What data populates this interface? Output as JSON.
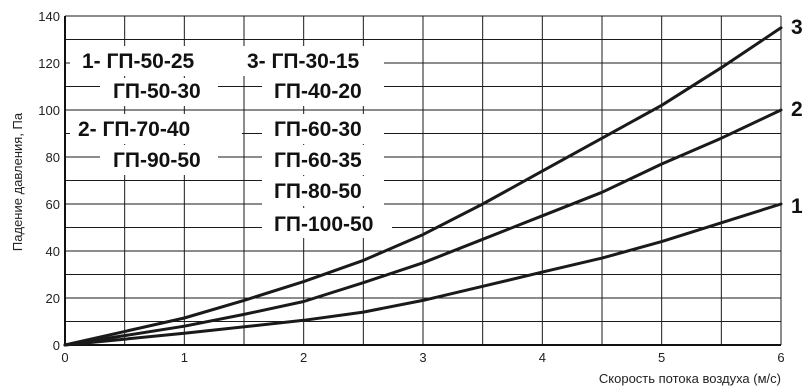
{
  "chart_data": {
    "type": "line",
    "xlabel": "Скорость потока воздуха (м/с)",
    "ylabel": "Падение давления, Па",
    "xlim": [
      0,
      6
    ],
    "ylim": [
      0,
      140
    ],
    "x_ticks": [
      "0",
      "1",
      "2",
      "3",
      "4",
      "5",
      "6"
    ],
    "y_ticks": [
      "0",
      "20",
      "40",
      "60",
      "80",
      "100",
      "120",
      "140"
    ],
    "grid": true,
    "series": [
      {
        "name": "1",
        "x": [
          0,
          1,
          2,
          2.5,
          3,
          3.5,
          4,
          4.5,
          5,
          5.5,
          6
        ],
        "y": [
          0,
          5,
          10.5,
          14,
          19,
          25,
          31,
          37,
          44,
          52,
          60
        ]
      },
      {
        "name": "2",
        "x": [
          0,
          1,
          1.5,
          2,
          2.5,
          3,
          3.5,
          4,
          4.5,
          5,
          5.5,
          6
        ],
        "y": [
          0,
          8,
          13,
          18.5,
          26.5,
          35,
          45,
          55,
          65,
          77,
          88,
          100
        ]
      },
      {
        "name": "3",
        "x": [
          0,
          1,
          1.5,
          2,
          2.5,
          3,
          3.5,
          4,
          4.5,
          5,
          5.5,
          6
        ],
        "y": [
          0,
          11.5,
          19,
          27,
          36,
          47,
          60,
          74,
          88,
          102,
          118,
          135
        ]
      }
    ],
    "legend": {
      "group1": [
        "1- ГП-50-25",
        "ГП-50-30"
      ],
      "group2": [
        "2- ГП-70-40",
        "ГП-90-50"
      ],
      "group3": [
        "3- ГП-30-15",
        "ГП-40-20",
        "ГП-60-30",
        "ГП-60-35",
        "ГП-80-50",
        "ГП-100-50"
      ]
    }
  }
}
